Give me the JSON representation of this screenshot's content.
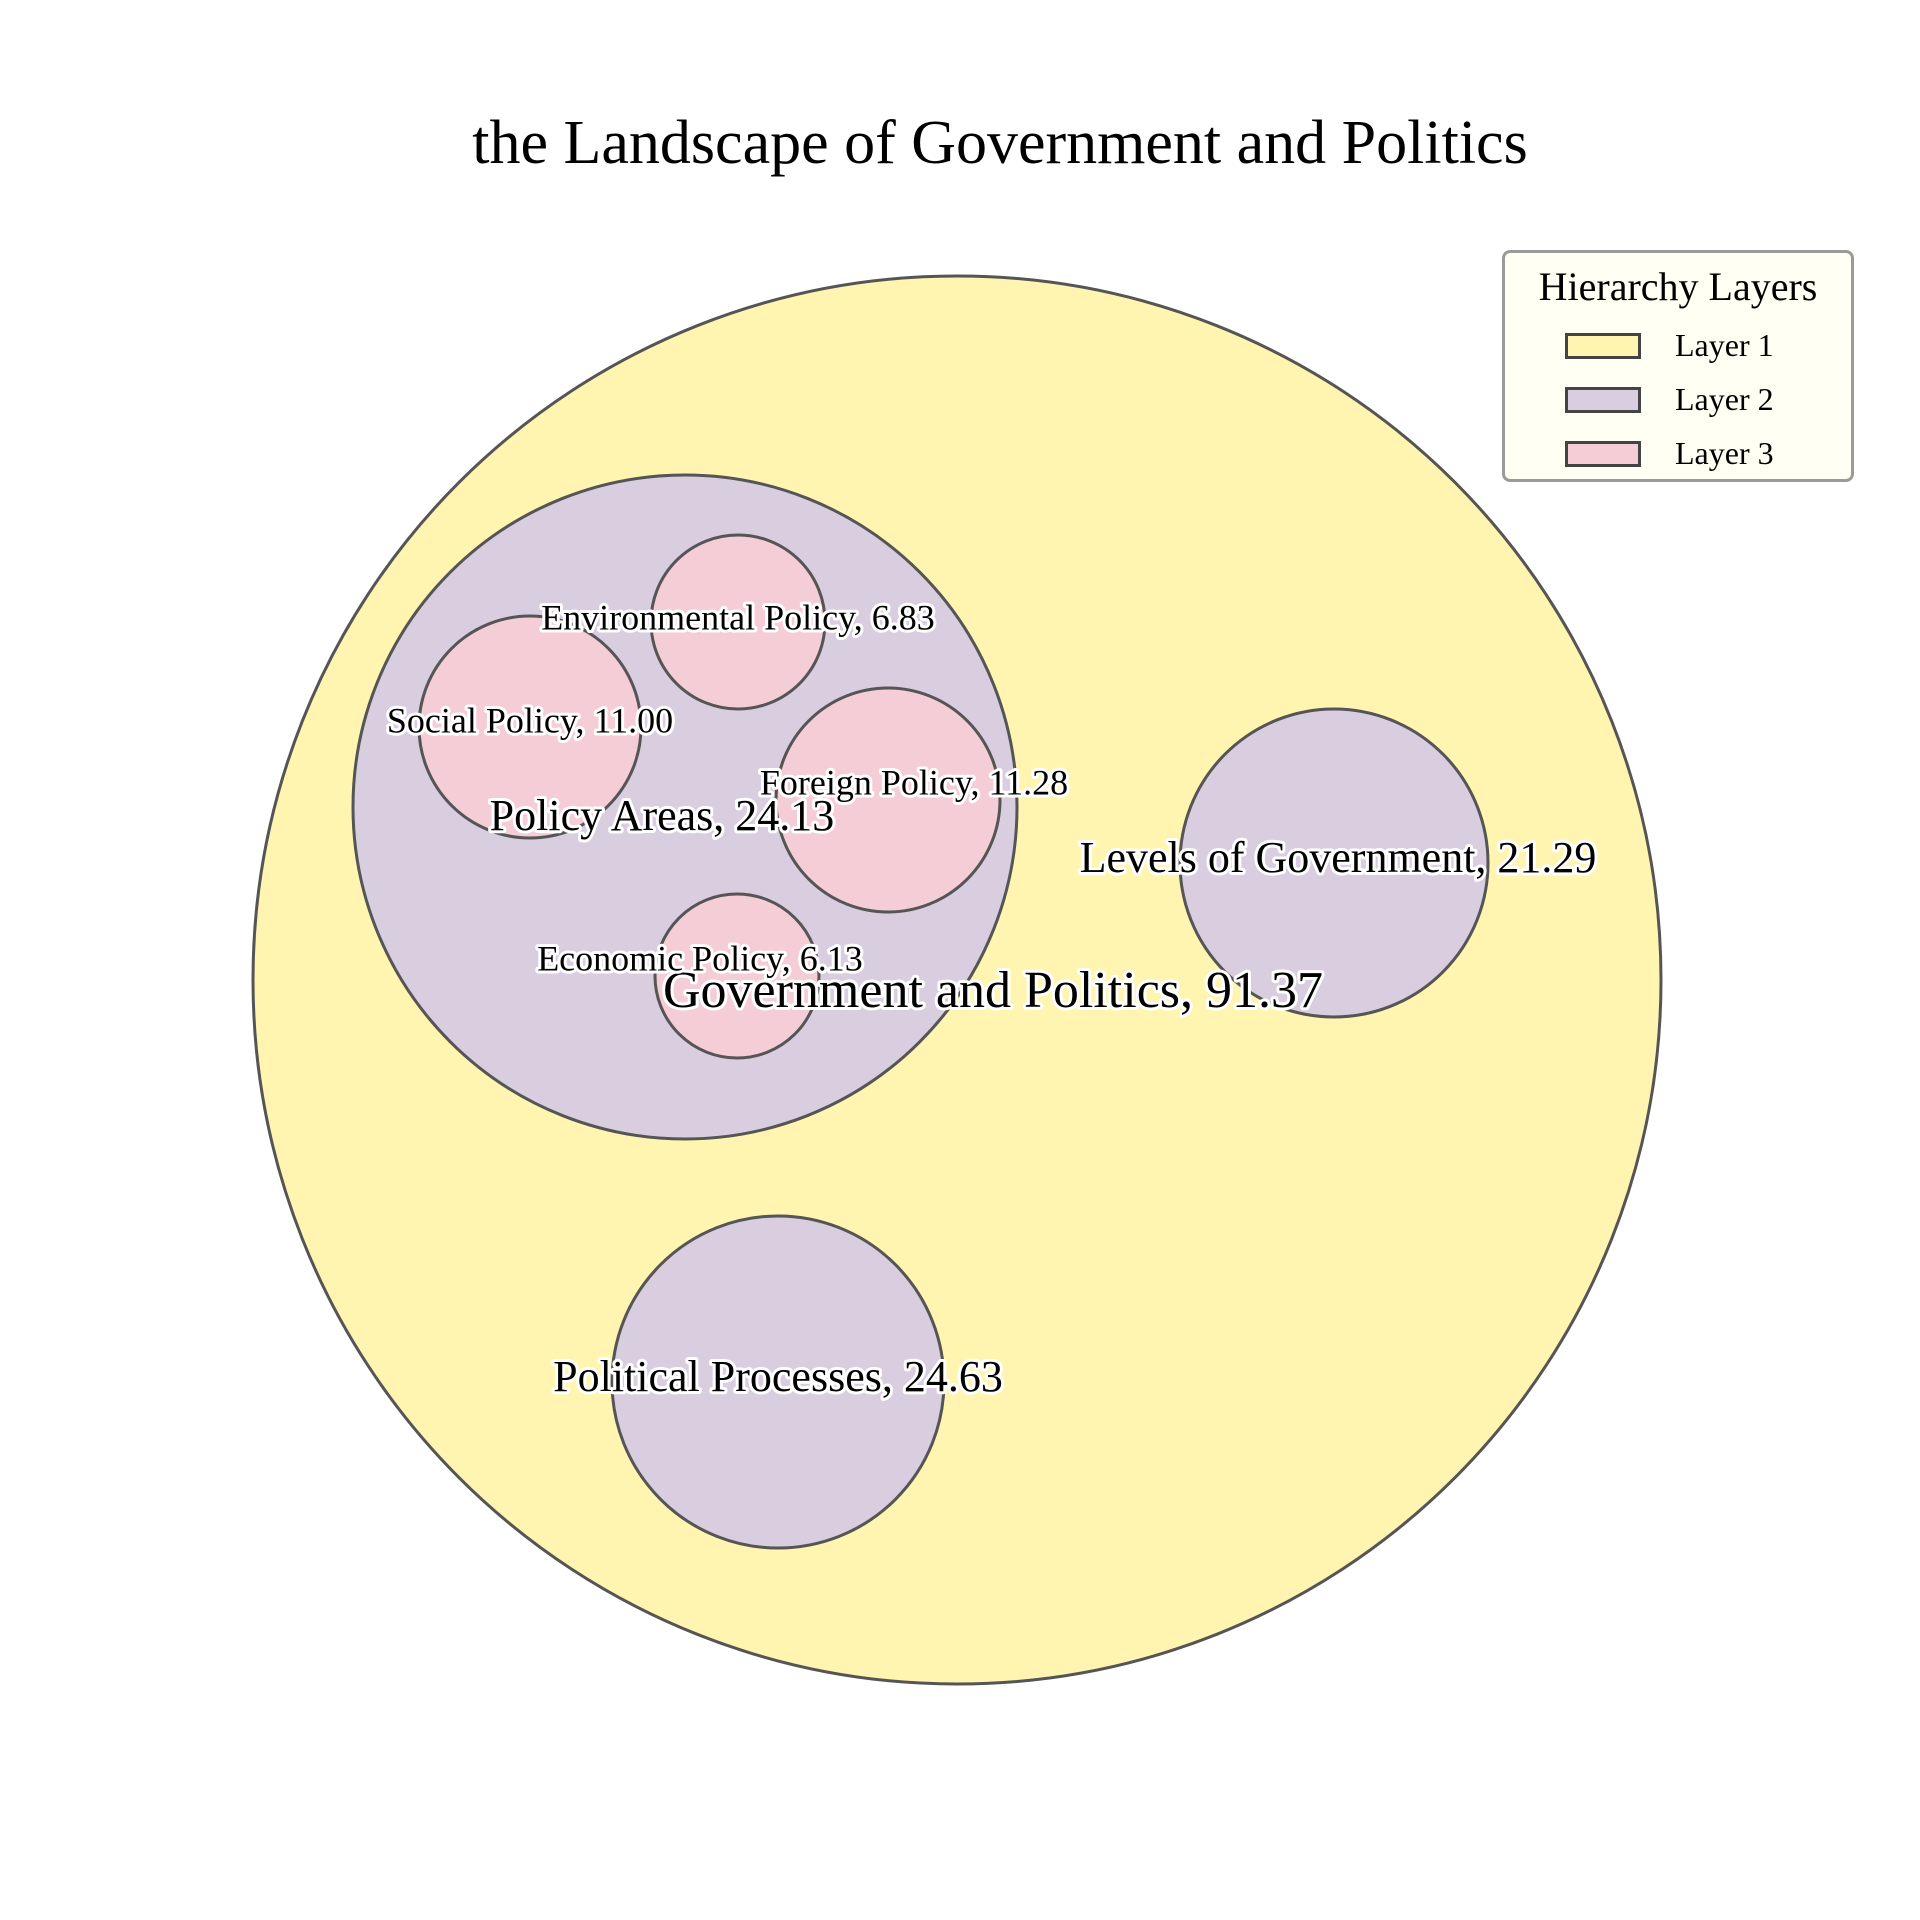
{
  "title": "the Landscape of Government and Politics",
  "chart_data": {
    "type": "circle-packing",
    "title": "the Landscape of Government and Politics",
    "nodes": [
      {
        "id": "gov",
        "name": "Government and Politics",
        "value": 91.37,
        "layer": 1,
        "parent": null,
        "label": "Government and Politics, 91.37"
      },
      {
        "id": "policy",
        "name": "Policy Areas",
        "value": 24.13,
        "layer": 2,
        "parent": "gov",
        "label": "Policy Areas, 24.13"
      },
      {
        "id": "levels",
        "name": "Levels of Government",
        "value": 21.29,
        "layer": 2,
        "parent": "gov",
        "label": "Levels of Government, 21.29"
      },
      {
        "id": "processes",
        "name": "Political Processes",
        "value": 24.63,
        "layer": 2,
        "parent": "gov",
        "label": "Political Processes, 24.63"
      },
      {
        "id": "env",
        "name": "Environmental Policy",
        "value": 6.83,
        "layer": 3,
        "parent": "policy",
        "label": "Environmental Policy, 6.83"
      },
      {
        "id": "social",
        "name": "Social Policy",
        "value": 11.0,
        "layer": 3,
        "parent": "policy",
        "label": "Social Policy, 11.00"
      },
      {
        "id": "foreign",
        "name": "Foreign Policy",
        "value": 11.28,
        "layer": 3,
        "parent": "policy",
        "label": "Foreign Policy, 11.28"
      },
      {
        "id": "econ",
        "name": "Economic Policy",
        "value": 6.13,
        "layer": 3,
        "parent": "policy",
        "label": "Economic Policy, 6.13"
      }
    ],
    "legend": {
      "title": "Hierarchy Layers",
      "placement": "top-right",
      "items": [
        {
          "label": "Layer 1",
          "color": "#fff5b0"
        },
        {
          "label": "Layer 2",
          "color": "#d9cde0"
        },
        {
          "label": "Layer 3",
          "color": "#f5cdd6"
        }
      ]
    },
    "layer_colors": {
      "1": "#fff5b0",
      "2": "#d9cde0",
      "3": "#f5cdd6"
    },
    "stroke_color": "#555555"
  }
}
